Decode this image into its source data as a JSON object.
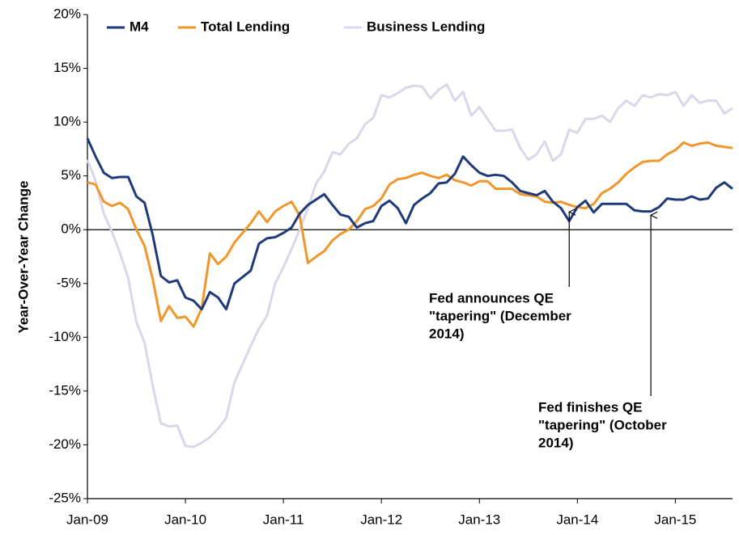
{
  "chart_data": {
    "type": "line",
    "y_axis_label": "Year-Over-Year Change",
    "categories": [
      "Jan-09",
      null,
      null,
      null,
      null,
      null,
      null,
      null,
      null,
      null,
      null,
      null,
      "Jan-10",
      null,
      null,
      null,
      null,
      null,
      null,
      null,
      null,
      null,
      null,
      null,
      "Jan-11",
      null,
      null,
      null,
      null,
      null,
      null,
      null,
      null,
      null,
      null,
      null,
      "Jan-12",
      null,
      null,
      null,
      null,
      null,
      null,
      null,
      null,
      null,
      null,
      null,
      "Jan-13",
      null,
      null,
      null,
      null,
      null,
      null,
      null,
      null,
      null,
      null,
      null,
      "Jan-14",
      null,
      null,
      null,
      null,
      null,
      null,
      null,
      null,
      null,
      null,
      null,
      "Jan-15",
      null,
      null,
      null,
      null,
      null,
      null,
      null
    ],
    "series": [
      {
        "name": "M4",
        "color": "#1f3a7a",
        "values": [
          8.5,
          6.8,
          5.3,
          4.8,
          4.9,
          4.9,
          3.1,
          2.5,
          -0.5,
          -4.3,
          -4.9,
          -4.7,
          -6.3,
          -6.6,
          -7.4,
          -5.8,
          -6.3,
          -7.4,
          -5.0,
          -4.4,
          -3.8,
          -1.3,
          -0.8,
          -0.7,
          -0.3,
          0.2,
          1.5,
          2.3,
          2.8,
          3.3,
          2.3,
          1.4,
          1.2,
          0.2,
          0.6,
          0.8,
          2.2,
          2.7,
          2.0,
          0.6,
          2.3,
          2.9,
          3.4,
          4.3,
          4.4,
          5.2,
          6.8,
          6.0,
          5.3,
          5.0,
          5.1,
          5.0,
          4.4,
          3.6,
          3.4,
          3.2,
          3.6,
          2.6,
          2.0,
          0.8,
          2.1,
          2.7,
          1.6,
          2.4,
          2.4,
          2.4,
          2.4,
          1.8,
          1.7,
          1.7,
          2.1,
          2.9,
          2.8,
          2.8,
          3.1,
          2.8,
          2.9,
          3.9,
          4.4,
          3.8
        ]
      },
      {
        "name": "Total Lending",
        "color": "#f0962a",
        "values": [
          4.4,
          4.2,
          2.6,
          2.2,
          2.5,
          1.9,
          0.0,
          -1.5,
          -4.6,
          -8.5,
          -7.1,
          -8.2,
          -8.1,
          -9.0,
          -7.3,
          -2.2,
          -3.2,
          -2.5,
          -1.2,
          -0.3,
          0.6,
          1.7,
          0.7,
          1.7,
          2.2,
          2.6,
          1.3,
          -3.1,
          -2.5,
          -2.0,
          -1.0,
          -0.4,
          0.0,
          0.8,
          1.9,
          2.2,
          2.9,
          4.2,
          4.7,
          4.8,
          5.1,
          5.3,
          5.0,
          4.8,
          5.1,
          4.6,
          4.4,
          4.1,
          4.5,
          4.5,
          3.8,
          3.8,
          3.8,
          3.3,
          3.2,
          3.1,
          2.6,
          2.5,
          2.6,
          2.3,
          2.1,
          2.0,
          2.4,
          3.4,
          3.8,
          4.4,
          5.2,
          5.8,
          6.3,
          6.4,
          6.4,
          7.0,
          7.4,
          8.1,
          7.8,
          8.0,
          8.1,
          7.8,
          7.7,
          7.6
        ]
      },
      {
        "name": "Business Lending",
        "color": "#d8d8ea",
        "values": [
          6.5,
          4.5,
          1.5,
          -0.2,
          -2.2,
          -4.5,
          -8.6,
          -10.5,
          -14.5,
          -18.0,
          -18.3,
          -18.2,
          -20.1,
          -20.2,
          -19.8,
          -19.3,
          -18.5,
          -17.5,
          -14.2,
          -12.5,
          -10.8,
          -9.2,
          -8.0,
          -5.0,
          -3.5,
          -1.8,
          0.0,
          2.0,
          4.3,
          5.4,
          7.2,
          7.0,
          8.0,
          8.5,
          9.8,
          10.4,
          12.5,
          12.3,
          12.7,
          13.2,
          13.4,
          13.3,
          12.2,
          13.0,
          13.5,
          12.0,
          12.8,
          10.6,
          11.4,
          10.3,
          9.2,
          9.2,
          9.3,
          7.6,
          6.5,
          7.0,
          8.2,
          6.4,
          7.0,
          9.3,
          9.0,
          10.3,
          10.3,
          10.6,
          10.0,
          11.3,
          12.0,
          11.5,
          12.5,
          12.3,
          12.6,
          12.5,
          12.8,
          11.5,
          12.5,
          11.8,
          12.0,
          12.0,
          10.8,
          11.3
        ]
      }
    ],
    "ylim": [
      -25,
      20
    ],
    "yticks": [
      {
        "value": -25,
        "label": "-25%"
      },
      {
        "value": -20,
        "label": "-20%"
      },
      {
        "value": -15,
        "label": "-15%"
      },
      {
        "value": -10,
        "label": "-10%"
      },
      {
        "value": -5,
        "label": "-5%"
      },
      {
        "value": 0,
        "label": "0%"
      },
      {
        "value": 5,
        "label": "5%"
      },
      {
        "value": 10,
        "label": "10%"
      },
      {
        "value": 15,
        "label": "15%"
      },
      {
        "value": 20,
        "label": "20%"
      }
    ],
    "legend": "top-left",
    "annotations": [
      {
        "lines": [
          "Fed announces QE",
          "\"tapering\" (December",
          "2014)"
        ]
      },
      {
        "lines": [
          "Fed finishes QE",
          "\"tapering\" (October",
          "2014)"
        ]
      }
    ]
  }
}
